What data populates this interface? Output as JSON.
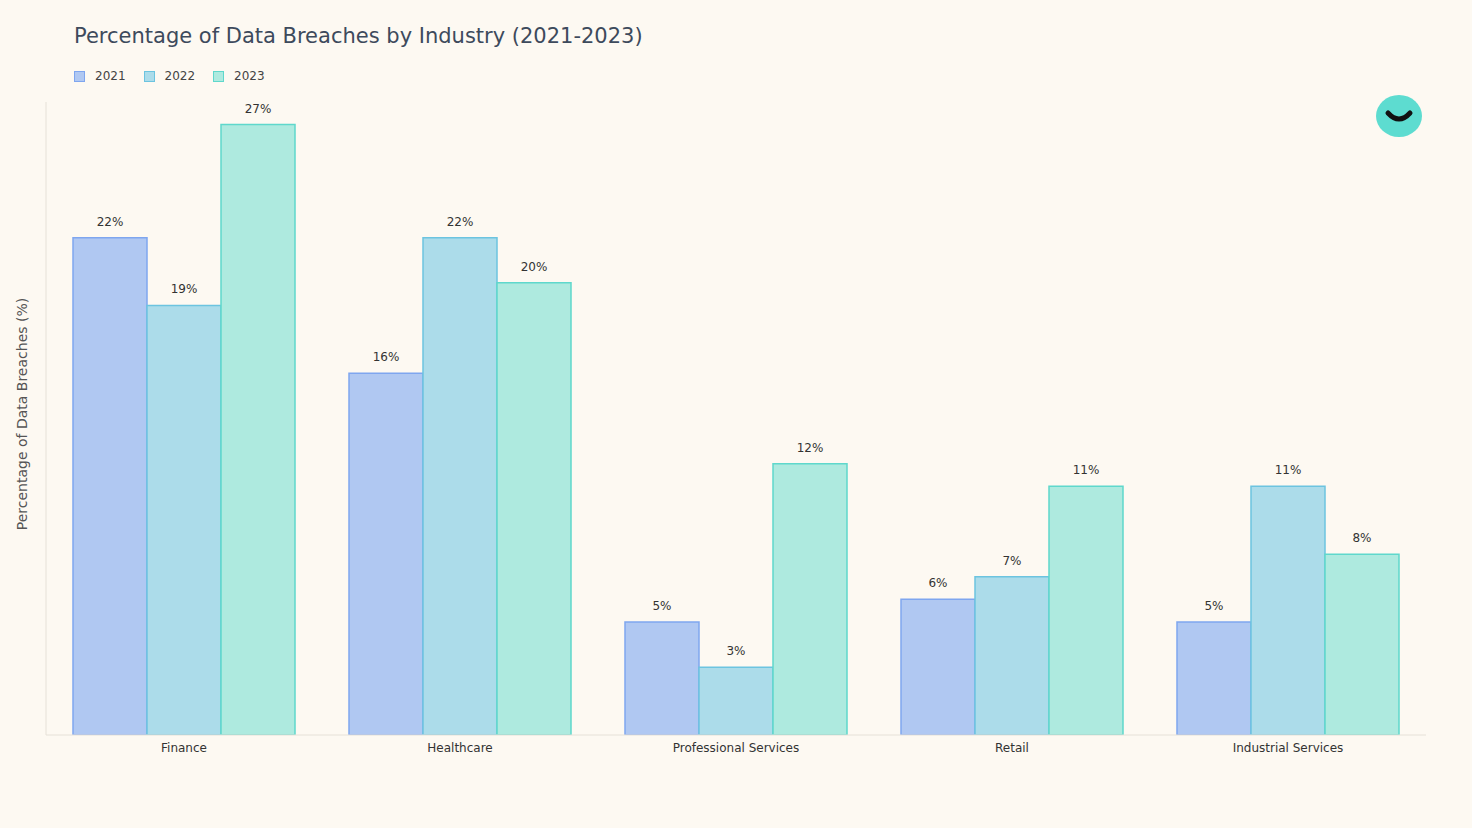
{
  "chart_data": {
    "type": "bar",
    "title": "Percentage of Data Breaches by Industry (2021-2023)",
    "y_label": "Percentage of Data Breaches (%)",
    "categories": [
      "Finance",
      "Healthcare",
      "Professional Services",
      "Retail",
      "Industrial Services"
    ],
    "series": [
      {
        "name": "2021",
        "color": "#b0c8f2",
        "values": [
          22,
          16,
          5,
          6,
          5
        ],
        "value_labels": [
          "22%",
          "16%",
          "5%",
          "6%",
          "5%"
        ]
      },
      {
        "name": "2022",
        "color": "#acdcea",
        "values": [
          19,
          22,
          3,
          7,
          11
        ],
        "value_labels": [
          "19%",
          "22%",
          "3%",
          "7%",
          "11%"
        ]
      },
      {
        "name": "2023",
        "color": "#aeeadf",
        "values": [
          27,
          20,
          12,
          11,
          8
        ],
        "value_labels": [
          "27%",
          "20%",
          "12%",
          "11%",
          "8%"
        ]
      }
    ],
    "ylim": [
      0,
      28
    ],
    "grid": false,
    "legend": "top-left",
    "data_labels": true,
    "tick_labels": "x"
  }
}
